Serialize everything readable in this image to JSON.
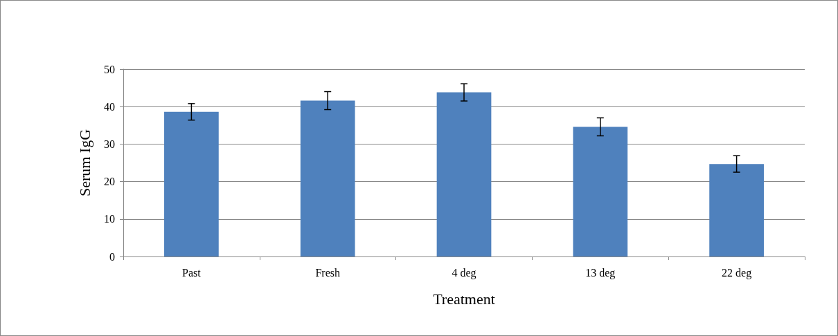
{
  "chart_data": {
    "type": "bar",
    "xlabel": "Treatment",
    "ylabel": "Serum IgG",
    "categories": [
      "Past",
      "Fresh",
      "4 deg",
      "13 deg",
      "22 deg"
    ],
    "values": [
      38.6,
      41.6,
      43.8,
      34.6,
      24.7
    ],
    "errors": [
      2.2,
      2.4,
      2.3,
      2.4,
      2.2
    ],
    "color": "#4f81bd",
    "ylim": [
      0,
      50
    ],
    "yticks": [
      0,
      10,
      20,
      30,
      40,
      50
    ],
    "grid": "y"
  }
}
